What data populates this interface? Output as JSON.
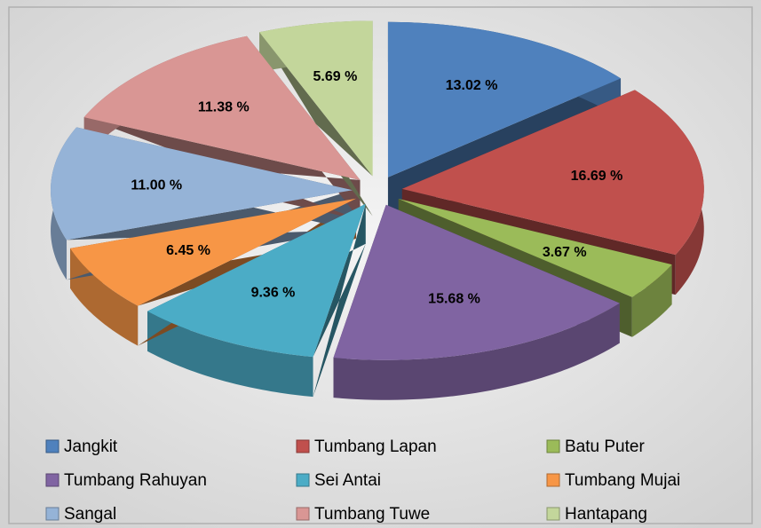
{
  "chart_data": {
    "type": "pie",
    "categories": [
      "Jangkit",
      "Tumbang Lapan",
      "Batu Puter",
      "Tumbang Rahuyan",
      "Sei Antai",
      "Tumbang Mujai",
      "Sangal",
      "Tumbang Tuwe",
      "Hantapang"
    ],
    "values": [
      13.02,
      16.69,
      3.67,
      15.68,
      9.36,
      6.45,
      11.0,
      11.38,
      5.69
    ],
    "value_labels": [
      "13.02 %",
      "16.69 %",
      "3.67 %",
      "15.68 %",
      "9.36 %",
      "6.45 %",
      "11.00 %",
      "11.38 %",
      "5.69 %"
    ],
    "colors": [
      "#4f81bd",
      "#c0504d",
      "#9bbb59",
      "#8064a2",
      "#4bacc6",
      "#f79646",
      "#95b3d7",
      "#d99694",
      "#c3d69b"
    ],
    "legend": "bottom"
  }
}
